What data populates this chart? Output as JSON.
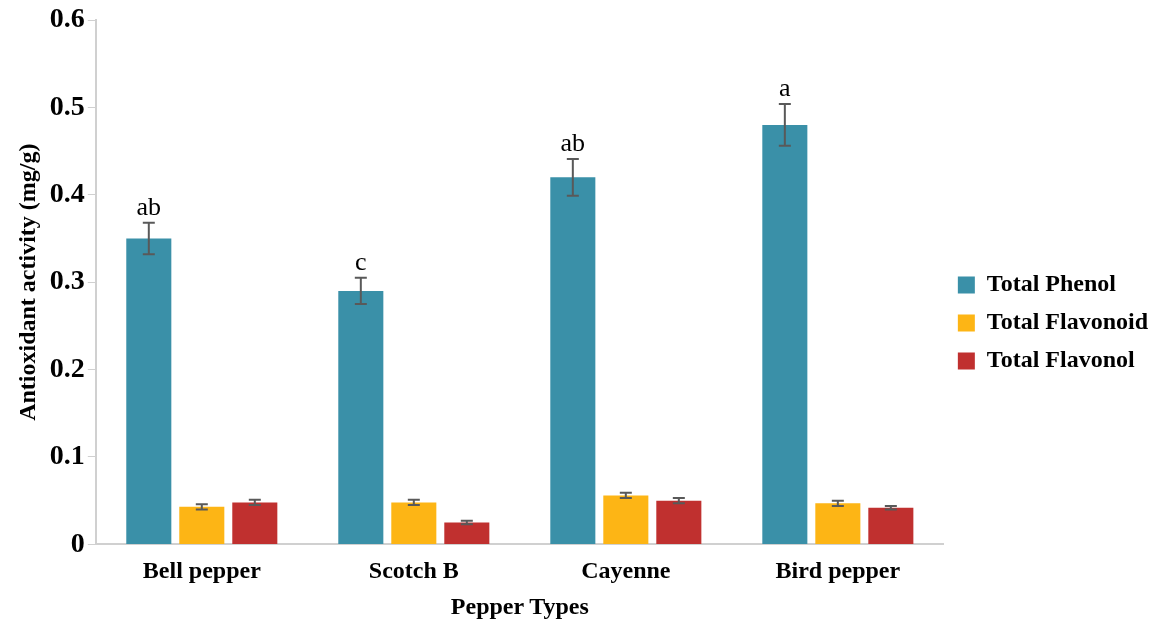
{
  "chart_data": {
    "type": "bar",
    "xlabel": "Pepper Types",
    "ylabel": "Antioxidant activity (mg/g)",
    "categories": [
      "Bell pepper",
      "Scotch B",
      "Cayenne",
      "Bird pepper"
    ],
    "series": [
      {
        "name": "Total Phenol",
        "color": "#3a90a8",
        "values": [
          0.35,
          0.29,
          0.42,
          0.48
        ],
        "errors": [
          0.018,
          0.015,
          0.021,
          0.024
        ]
      },
      {
        "name": "Total Flavonoid",
        "color": "#fdb515",
        "values": [
          0.043,
          0.048,
          0.056,
          0.047
        ],
        "errors": [
          0.003,
          0.003,
          0.003,
          0.003
        ]
      },
      {
        "name": "Total Flavonol",
        "color": "#c0302f",
        "values": [
          0.048,
          0.025,
          0.05,
          0.042
        ],
        "errors": [
          0.003,
          0.002,
          0.003,
          0.002
        ]
      }
    ],
    "ylim": [
      0,
      0.6
    ],
    "yticks": [
      0,
      0.1,
      0.2,
      0.3,
      0.4,
      0.5,
      0.6
    ],
    "grid": false,
    "legend": "right",
    "annotations": [
      "ab",
      "c",
      "ab",
      "a"
    ]
  }
}
